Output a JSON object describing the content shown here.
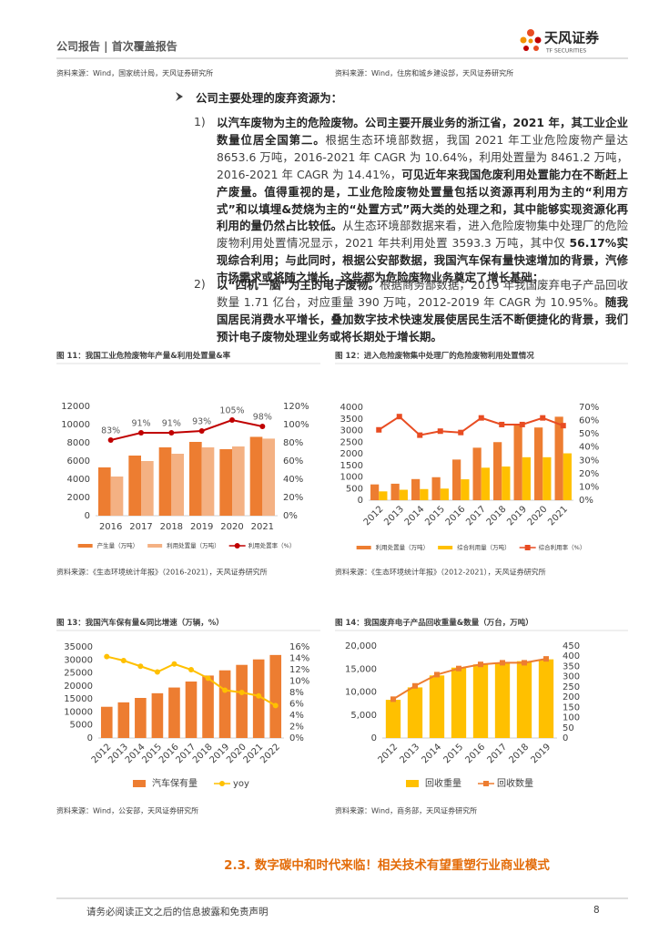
{
  "header": {
    "left": "公司报告 | 首次覆盖报告",
    "logo": "天风证券",
    "logo_en": "TF SECURITIES"
  },
  "top_sources": [
    "资料来源：Wind，国家统计局，天风证券研究所",
    "资料来源：Wind，住房和城乡建设部，天风证券研究所"
  ],
  "bullet": "公司主要处理的废弃资源为：",
  "items": [
    {
      "num": "1)",
      "segments": [
        {
          "text": "以汽车废物为主的危险废物。公司主要开展业务的浙江省，2021 年，其工业企业数量位居全国第二。",
          "bold": true
        },
        {
          "text": "根据生态环境部数据，我国 2021 年工业危险废物产量达 8653.6 万吨，2016-2021 年 CAGR 为 10.64%，利用处置量为 8461.2 万吨，2016-2021 年 CAGR 为 14.41%，",
          "bold": false
        },
        {
          "text": "可见近年来我国危废利用处置能力在不断赶上产废量。值得重视的是，工业危险废物处置量包括以资源再利用为主的“利用方式”和以填埋&焚烧为主的“处置方式”两大类的处理之和，其中能够实现资源化再利用的量仍然占比较低。",
          "bold": true
        },
        {
          "text": "从生态环境部数据来看，进入危险废物集中处理厂的危险废物利用处置情况显示，2021 年共利用处置 3593.3 万吨，其中仅 ",
          "bold": false
        },
        {
          "text": "56.17%实现综合利用；与此同时，根据公安部数据，我国汽车保有量快速增加的背景，汽修市场需求或将随之增长，这些都为危险废物业务奠定了增长基础；",
          "bold": true
        }
      ]
    },
    {
      "num": "2)",
      "segments": [
        {
          "text": "以“四机一脑”为主的电子废物。",
          "bold": true
        },
        {
          "text": "根据商务部数据，2019 年我国废弃电子产品回收数量 1.71 亿台，对应重量 390 万吨，2012-2019 年 CAGR 为 10.95%。",
          "bold": false
        },
        {
          "text": "随我国居民消费水平增长，叠加数字技术快速发展使居民生活不断便捷化的背景，我们预计电子废物处理业务或将长期处于增长期。",
          "bold": true
        }
      ]
    }
  ],
  "chart_data": [
    {
      "type": "bar",
      "label": "图 11：",
      "title": "我国工业危险废物年产量&利用处置量&率",
      "categories": [
        "2016",
        "2017",
        "2018",
        "2019",
        "2020",
        "2021"
      ],
      "series": [
        {
          "name": "产生量（万吨）",
          "color": "#ED7D31",
          "values": [
            5300,
            6600,
            7500,
            8100,
            7300,
            8653.6
          ]
        },
        {
          "name": "利用处置量（万吨）",
          "color": "#F4B183",
          "values": [
            4300,
            6000,
            6800,
            7500,
            7600,
            8461.2
          ]
        },
        {
          "name": "利用处置率（%）",
          "type": "line",
          "axis": "y2",
          "marker": "circle",
          "color": "#C00000",
          "values": [
            83,
            91,
            91,
            93,
            105,
            98
          ],
          "value_labels": [
            "83%",
            "91%",
            "91%",
            "93%",
            "105%",
            "98%"
          ]
        }
      ],
      "ylim": [
        0,
        12000
      ],
      "yticks": [
        0,
        2000,
        4000,
        6000,
        8000,
        10000,
        12000
      ],
      "y2lim": [
        0,
        120
      ],
      "y2ticks": [
        {
          "value": 0,
          "label": "0%"
        },
        {
          "value": 20,
          "label": "20%"
        },
        {
          "value": 40,
          "label": "40%"
        },
        {
          "value": 60,
          "label": "60%"
        },
        {
          "value": 80,
          "label": "80%"
        },
        {
          "value": 100,
          "label": "100%"
        },
        {
          "value": 120,
          "label": "120%"
        }
      ],
      "source": "资料来源：《生态环境统计年报》（2016-2021），天风证券研究所"
    },
    {
      "type": "bar",
      "label": "图 12：",
      "title": "进入危险废物集中处理厂的危险废物利用处置情况",
      "categories": [
        "2012",
        "2013",
        "2014",
        "2015",
        "2016",
        "2017",
        "2018",
        "2019",
        "2020",
        "2021"
      ],
      "series": [
        {
          "name": "利用处置量（万吨）",
          "color": "#ED7D31",
          "values": [
            680,
            710,
            910,
            990,
            1750,
            2260,
            2500,
            3290,
            3130,
            3593.3
          ]
        },
        {
          "name": "综合利用量（万吨）",
          "color": "#FFC000",
          "values": [
            380,
            450,
            480,
            500,
            900,
            1400,
            1450,
            1850,
            1850,
            2018
          ]
        },
        {
          "name": "综合利用率（%）",
          "type": "line",
          "axis": "y2",
          "marker": "square",
          "color": "#E84C22",
          "values": [
            53,
            63,
            49,
            52,
            51,
            62,
            57,
            57,
            62,
            56.17
          ]
        }
      ],
      "ylim": [
        0,
        4000
      ],
      "yticks": [
        0,
        500,
        1000,
        1500,
        2000,
        2500,
        3000,
        3500,
        4000
      ],
      "y2lim": [
        0,
        70
      ],
      "y2ticks": [
        {
          "value": 0,
          "label": "0%"
        },
        {
          "value": 10,
          "label": "10%"
        },
        {
          "value": 20,
          "label": "20%"
        },
        {
          "value": 30,
          "label": "30%"
        },
        {
          "value": 40,
          "label": "40%"
        },
        {
          "value": 50,
          "label": "50%"
        },
        {
          "value": 60,
          "label": "60%"
        },
        {
          "value": 70,
          "label": "70%"
        }
      ],
      "source": "资料来源：《生态环境统计年报》（2012-2021），天风证券研究所"
    },
    {
      "type": "bar",
      "label": "图 13：",
      "title": "我国汽车保有量&同比增速（万辆，%）",
      "categories": [
        "2012",
        "2013",
        "2014",
        "2015",
        "2016",
        "2017",
        "2018",
        "2019",
        "2020",
        "2021",
        "2022"
      ],
      "series": [
        {
          "name": "汽车保有量",
          "color": "#ED7D31",
          "values": [
            12000,
            13700,
            15400,
            17200,
            19400,
            21700,
            24000,
            26000,
            28100,
            30200,
            31900
          ]
        },
        {
          "name": "yoy",
          "type": "line",
          "axis": "y2",
          "marker": "circle",
          "color": "#FFC000",
          "values": [
            14.3,
            13.6,
            12.6,
            11.6,
            13,
            12,
            10.5,
            8.4,
            8,
            7.4,
            5.7
          ]
        }
      ],
      "ylim": [
        0,
        35000
      ],
      "yticks": [
        0,
        5000,
        10000,
        15000,
        20000,
        25000,
        30000,
        35000
      ],
      "y2lim": [
        0,
        16
      ],
      "y2ticks": [
        {
          "value": 0,
          "label": "0%"
        },
        {
          "value": 2,
          "label": "2%"
        },
        {
          "value": 4,
          "label": "4%"
        },
        {
          "value": 6,
          "label": "6%"
        },
        {
          "value": 8,
          "label": "8%"
        },
        {
          "value": 10,
          "label": "10%"
        },
        {
          "value": 12,
          "label": "12%"
        },
        {
          "value": 14,
          "label": "14%"
        },
        {
          "value": 16,
          "label": "16%"
        }
      ],
      "source": "资料来源：Wind，公安部，天风证券研究所"
    },
    {
      "type": "bar",
      "label": "图 14：",
      "title": "我国废弃电子产品回收重量&数量（万台，万吨）",
      "categories": [
        "2012",
        "2013",
        "2014",
        "2015",
        "2016",
        "2017",
        "2018",
        "2019"
      ],
      "series": [
        {
          "name": "回收重量",
          "color": "#FFC000",
          "values": [
            8300,
            11000,
            13600,
            15300,
            16000,
            16400,
            16700,
            17100
          ]
        },
        {
          "name": "回收数量",
          "type": "line",
          "axis": "y2",
          "marker": "square",
          "color": "#ED7D31",
          "values": [
            190,
            255,
            310,
            340,
            360,
            368,
            368,
            387
          ]
        }
      ],
      "ylim": [
        0,
        20000
      ],
      "yticks": [
        0,
        {
          "value": 5000,
          "label": "5,000"
        },
        {
          "value": 10000,
          "label": "10,000"
        },
        {
          "value": 15000,
          "label": "15,000"
        },
        {
          "value": 20000,
          "label": "20,000"
        }
      ],
      "y2lim": [
        0,
        450
      ],
      "y2ticks": [
        0,
        50,
        100,
        150,
        200,
        250,
        300,
        350,
        400,
        450
      ],
      "source": "资料来源：Wind，商务部，天风证券研究所"
    }
  ],
  "section_title": "2.3. 数字碳中和时代来临！相关技术有望重塑行业商业模式",
  "footer": {
    "disclaimer": "请务必阅读正文之后的信息披露和免责声明",
    "page": "8"
  }
}
